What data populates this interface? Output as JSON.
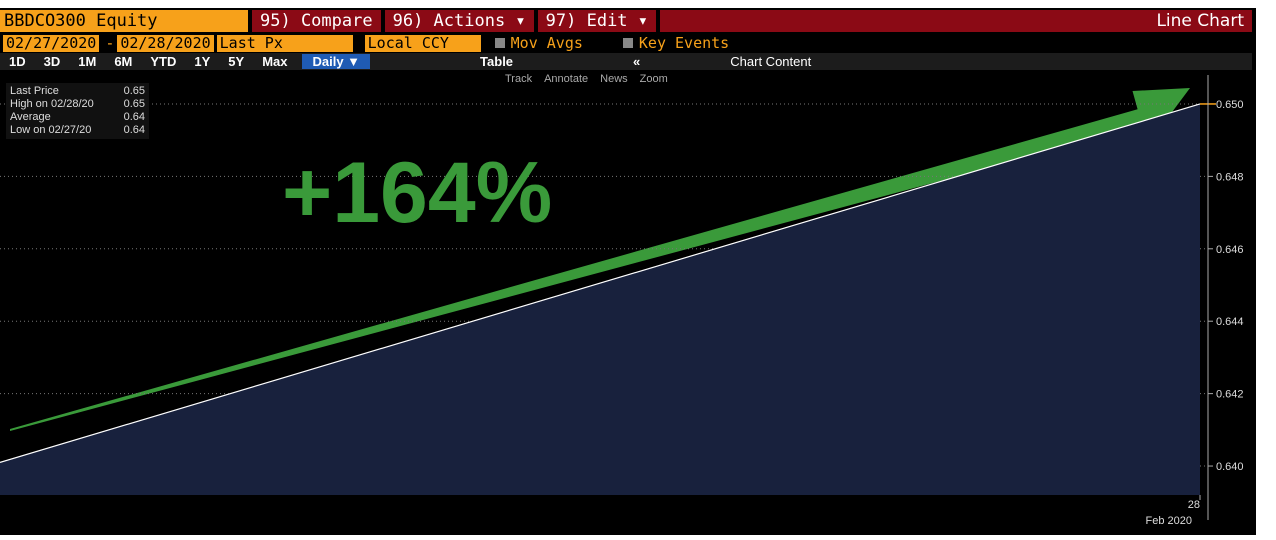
{
  "toolbar": {
    "security": "BBDCO300 Equity",
    "buttons": [
      "95) Compare",
      "96) Actions ▾",
      "97) Edit ▾"
    ],
    "view": "Line Chart",
    "start_date": "02/27/2020",
    "separator": "-",
    "end_date": "02/28/2020",
    "field": "Last Px",
    "currency": "Local CCY",
    "mov_avgs": "Mov Avgs",
    "key_events": "Key Events",
    "periods": [
      "1D",
      "3D",
      "1M",
      "6M",
      "YTD",
      "1Y",
      "5Y",
      "Max"
    ],
    "frequency": "Daily ▼",
    "table": "Table",
    "collapse": "«",
    "chart_content": "Chart Content",
    "tools": [
      "Track",
      "Annotate",
      "News",
      "Zoom"
    ]
  },
  "chart_data": {
    "type": "line",
    "categories": [
      null,
      "28"
    ],
    "x_sublabel": "Feb 2020",
    "series": [
      {
        "name": "Last Price",
        "color": "#ffffff",
        "area_color": "#18213d",
        "values": [
          0.6401,
          0.65
        ]
      }
    ],
    "stats": [
      {
        "label": "High on 02/28/20",
        "value": 0.65
      },
      {
        "label": "Average",
        "value": 0.64
      },
      {
        "label": "Low on 02/27/20",
        "value": 0.64
      }
    ],
    "annotation": "+164%",
    "annotation_color": "#3a9a3a",
    "ylim": [
      0.6392,
      0.6508
    ],
    "yticks": [
      {
        "value": 0.64,
        "label": "0.640"
      },
      {
        "value": 0.642,
        "label": "0.642"
      },
      {
        "value": 0.644,
        "label": "0.644"
      },
      {
        "value": 0.646,
        "label": "0.646"
      },
      {
        "value": 0.648,
        "label": "0.648"
      },
      {
        "value": 0.65,
        "label": "0.650"
      }
    ],
    "grid": true
  }
}
